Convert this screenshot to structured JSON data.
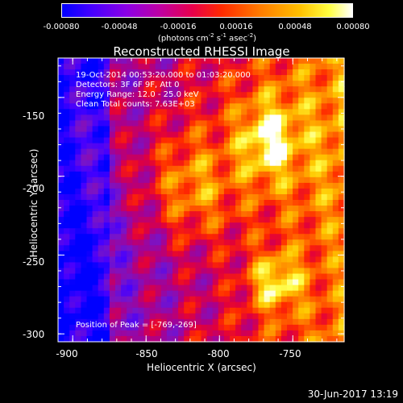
{
  "colorbar": {
    "ticks": [
      "-0.00080",
      "-0.00048",
      "-0.00016",
      "0.00016",
      "0.00048",
      "0.00080"
    ],
    "unit_main": "(photons cm",
    "unit_sup1": "-2",
    "unit_s": " s",
    "unit_sup2": "-1",
    "unit_a": " asec",
    "unit_sup3": "-2",
    "unit_end": ")"
  },
  "info_lines": [
    "19-Oct-2014 00:53:20.000 to 01:03:20.000",
    "Detectors: 3F 6F 9F, Att 0",
    "Energy Range: 12.0 - 25.0 keV",
    "Clean     Total counts: 7.63E+03"
  ],
  "peak_text": "Position of Peak = [-769,-269]",
  "stamp": "30-Jun-2017 13:19",
  "chart_data": {
    "type": "heatmap",
    "title": "Reconstructed RHESSI Image",
    "xlabel": "Heliocentric X (arcsec)",
    "ylabel": "Heliocentric Y (arcsec)",
    "xlim": [
      -910,
      -715
    ],
    "ylim": [
      -305,
      -125
    ],
    "xticks": [
      -900,
      -850,
      -800,
      -750
    ],
    "yticks": [
      -150,
      -200,
      -250,
      -300
    ],
    "zlim": [
      -0.0008,
      0.0008
    ],
    "peak": [
      -769,
      -269
    ],
    "colors": {
      "low": "#0000ff",
      "mid": "#e8004a",
      "high": "#ffffff"
    }
  }
}
